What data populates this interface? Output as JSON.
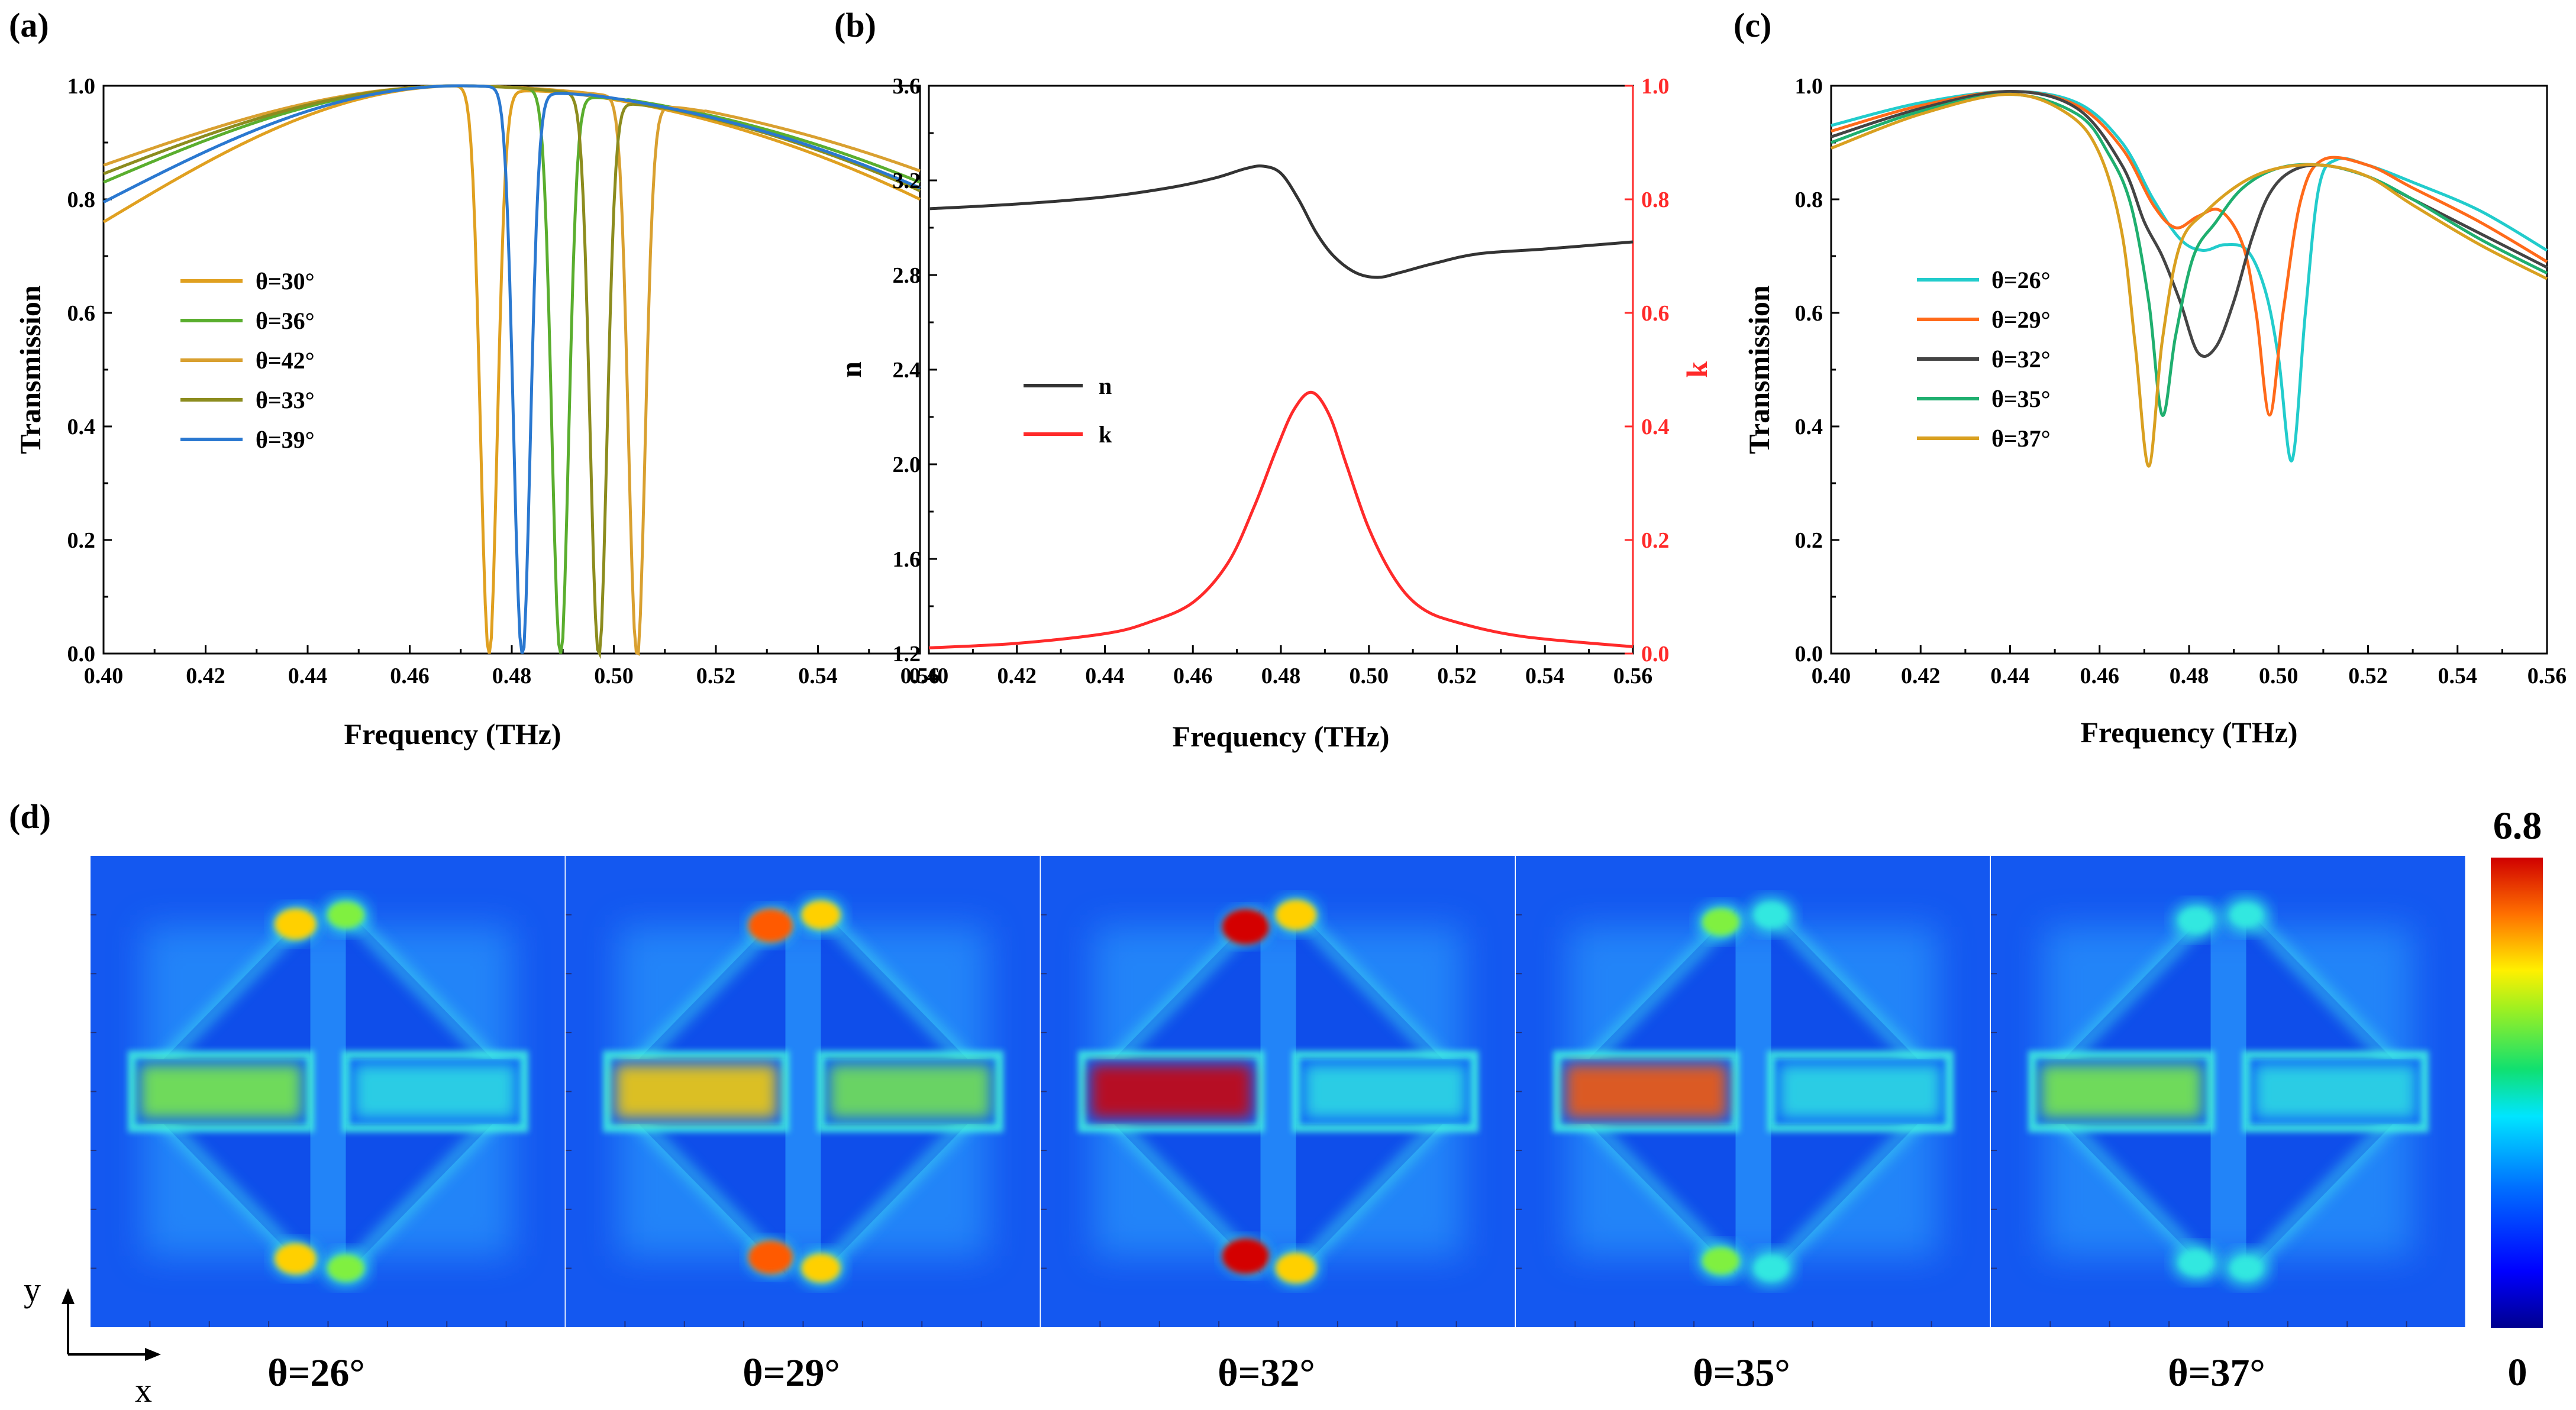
{
  "chart_data": [
    {
      "panel": "(a)",
      "type": "line",
      "xlabel": "Frequency (THz)",
      "ylabel": "Transmission",
      "xlim": [
        0.4,
        0.56
      ],
      "ylim": [
        0.0,
        1.0
      ],
      "xticks": [
        "0.40",
        "0.42",
        "0.44",
        "0.46",
        "0.48",
        "0.50",
        "0.52",
        "0.54",
        "0.56"
      ],
      "yticks": [
        "0.0",
        "0.2",
        "0.4",
        "0.6",
        "0.8",
        "1.0"
      ],
      "legend_position": "left",
      "series": [
        {
          "name": "θ=30°",
          "color": "#E0A020",
          "dip_x": 0.4755,
          "dip_min": 0.0,
          "width": 0.0022,
          "left_edge": 0.76,
          "right_edge": 0.8
        },
        {
          "name": "θ=36°",
          "color": "#5AAE2E",
          "dip_x": 0.4895,
          "dip_min": 0.0,
          "width": 0.0022,
          "left_edge": 0.83,
          "right_edge": 0.83
        },
        {
          "name": "θ=42°",
          "color": "#D9A030",
          "dip_x": 0.5045,
          "dip_min": 0.0,
          "width": 0.0022,
          "left_edge": 0.86,
          "right_edge": 0.85
        },
        {
          "name": "θ=33°",
          "color": "#8C8C1E",
          "dip_x": 0.497,
          "dip_min": 0.0,
          "width": 0.0022,
          "left_edge": 0.845,
          "right_edge": 0.815
        },
        {
          "name": "θ=39°",
          "color": "#2A78D0",
          "dip_x": 0.482,
          "dip_min": 0.0,
          "width": 0.0022,
          "left_edge": 0.795,
          "right_edge": 0.82
        }
      ]
    },
    {
      "panel": "(b)",
      "type": "line",
      "xlabel": "Frequency (THz)",
      "ylabel": "n",
      "ylabel_right": "k",
      "xlim": [
        0.4,
        0.56
      ],
      "ylim": [
        1.2,
        3.6
      ],
      "ylim_right": [
        0.0,
        1.0
      ],
      "xticks": [
        "0.40",
        "0.42",
        "0.44",
        "0.46",
        "0.48",
        "0.50",
        "0.52",
        "0.54",
        "0.56"
      ],
      "yticks": [
        "1.2",
        "1.6",
        "2.0",
        "2.4",
        "2.8",
        "3.2",
        "3.6"
      ],
      "yticks_right": [
        "0.0",
        "0.2",
        "0.4",
        "0.6",
        "0.8",
        "1.0"
      ],
      "series": [
        {
          "name": "n",
          "color": "#333333",
          "axis": "left",
          "x": [
            0.4,
            0.42,
            0.44,
            0.455,
            0.465,
            0.472,
            0.476,
            0.48,
            0.484,
            0.488,
            0.492,
            0.497,
            0.502,
            0.507,
            0.515,
            0.525,
            0.54,
            0.56
          ],
          "y": [
            3.08,
            3.1,
            3.13,
            3.17,
            3.21,
            3.25,
            3.26,
            3.23,
            3.12,
            2.98,
            2.88,
            2.81,
            2.79,
            2.81,
            2.85,
            2.89,
            2.91,
            2.94
          ]
        },
        {
          "name": "k",
          "color": "#FF2A2A",
          "axis": "right",
          "x": [
            0.4,
            0.42,
            0.44,
            0.45,
            0.46,
            0.468,
            0.474,
            0.479,
            0.483,
            0.487,
            0.491,
            0.495,
            0.5,
            0.506,
            0.512,
            0.52,
            0.535,
            0.56
          ],
          "y": [
            0.01,
            0.018,
            0.035,
            0.055,
            0.09,
            0.16,
            0.26,
            0.36,
            0.43,
            0.46,
            0.42,
            0.33,
            0.22,
            0.13,
            0.08,
            0.055,
            0.03,
            0.012
          ]
        }
      ]
    },
    {
      "panel": "(c)",
      "type": "line",
      "xlabel": "Frequency (THz)",
      "ylabel": "Transmission",
      "xlim": [
        0.4,
        0.56
      ],
      "ylim": [
        0.0,
        1.0
      ],
      "xticks": [
        "0.40",
        "0.42",
        "0.44",
        "0.46",
        "0.48",
        "0.50",
        "0.52",
        "0.54",
        "0.56"
      ],
      "yticks": [
        "0.0",
        "0.2",
        "0.4",
        "0.6",
        "0.8",
        "1.0"
      ],
      "legend_position": "left",
      "series": [
        {
          "name": "θ=26°",
          "color": "#22CCCC",
          "x": [
            0.4,
            0.42,
            0.44,
            0.455,
            0.465,
            0.472,
            0.478,
            0.483,
            0.488,
            0.493,
            0.497,
            0.5,
            0.503,
            0.506,
            0.509,
            0.513,
            0.52,
            0.53,
            0.545,
            0.56
          ],
          "y": [
            0.93,
            0.97,
            0.99,
            0.97,
            0.9,
            0.8,
            0.73,
            0.71,
            0.72,
            0.71,
            0.64,
            0.52,
            0.34,
            0.6,
            0.82,
            0.87,
            0.86,
            0.83,
            0.78,
            0.71
          ]
        },
        {
          "name": "θ=29°",
          "color": "#FF6A1A",
          "x": [
            0.4,
            0.42,
            0.44,
            0.455,
            0.465,
            0.472,
            0.477,
            0.482,
            0.487,
            0.492,
            0.495,
            0.498,
            0.501,
            0.505,
            0.51,
            0.52,
            0.53,
            0.545,
            0.56
          ],
          "y": [
            0.92,
            0.965,
            0.99,
            0.965,
            0.89,
            0.79,
            0.75,
            0.77,
            0.78,
            0.72,
            0.6,
            0.42,
            0.6,
            0.8,
            0.87,
            0.86,
            0.82,
            0.76,
            0.69
          ]
        },
        {
          "name": "θ=32°",
          "color": "#444444",
          "x": [
            0.4,
            0.42,
            0.44,
            0.455,
            0.465,
            0.47,
            0.474,
            0.478,
            0.482,
            0.486,
            0.49,
            0.494,
            0.498,
            0.503,
            0.51,
            0.52,
            0.53,
            0.545,
            0.56
          ],
          "y": [
            0.91,
            0.96,
            0.99,
            0.96,
            0.86,
            0.76,
            0.7,
            0.62,
            0.53,
            0.54,
            0.62,
            0.73,
            0.81,
            0.85,
            0.86,
            0.84,
            0.8,
            0.74,
            0.68
          ]
        },
        {
          "name": "θ=35°",
          "color": "#1FAF6F",
          "x": [
            0.4,
            0.42,
            0.44,
            0.455,
            0.462,
            0.467,
            0.471,
            0.474,
            0.477,
            0.481,
            0.486,
            0.492,
            0.5,
            0.51,
            0.52,
            0.53,
            0.545,
            0.56
          ],
          "y": [
            0.9,
            0.955,
            0.985,
            0.95,
            0.88,
            0.79,
            0.62,
            0.42,
            0.56,
            0.7,
            0.76,
            0.82,
            0.855,
            0.86,
            0.84,
            0.8,
            0.73,
            0.67
          ]
        },
        {
          "name": "θ=37°",
          "color": "#D9A020",
          "x": [
            0.4,
            0.42,
            0.44,
            0.453,
            0.46,
            0.465,
            0.468,
            0.471,
            0.474,
            0.478,
            0.484,
            0.492,
            0.5,
            0.51,
            0.52,
            0.53,
            0.545,
            0.56
          ],
          "y": [
            0.89,
            0.95,
            0.985,
            0.95,
            0.88,
            0.74,
            0.54,
            0.33,
            0.55,
            0.72,
            0.78,
            0.83,
            0.855,
            0.86,
            0.84,
            0.79,
            0.72,
            0.66
          ]
        }
      ]
    },
    {
      "panel": "(d)",
      "type": "heatmap",
      "axis_labels": {
        "y": "y",
        "x": "x"
      },
      "colorbar": {
        "max": "6.8",
        "min": "0"
      },
      "maps": [
        {
          "label": "θ=26°",
          "left_bar": 0.6,
          "right_bar": 0.55,
          "upper_tri": 0.78,
          "lower_tri": 0.78
        },
        {
          "label": "θ=29°",
          "left_bar": 0.7,
          "right_bar": 0.6,
          "upper_tri": 0.9,
          "lower_tri": 0.9
        },
        {
          "label": "θ=32°",
          "left_bar": 1.0,
          "right_bar": 0.5,
          "upper_tri": 1.0,
          "lower_tri": 1.0
        },
        {
          "label": "θ=35°",
          "left_bar": 0.85,
          "right_bar": 0.55,
          "upper_tri": 0.6,
          "lower_tri": 0.6
        },
        {
          "label": "θ=37°",
          "left_bar": 0.6,
          "right_bar": 0.55,
          "upper_tri": 0.45,
          "lower_tri": 0.45
        }
      ]
    }
  ]
}
